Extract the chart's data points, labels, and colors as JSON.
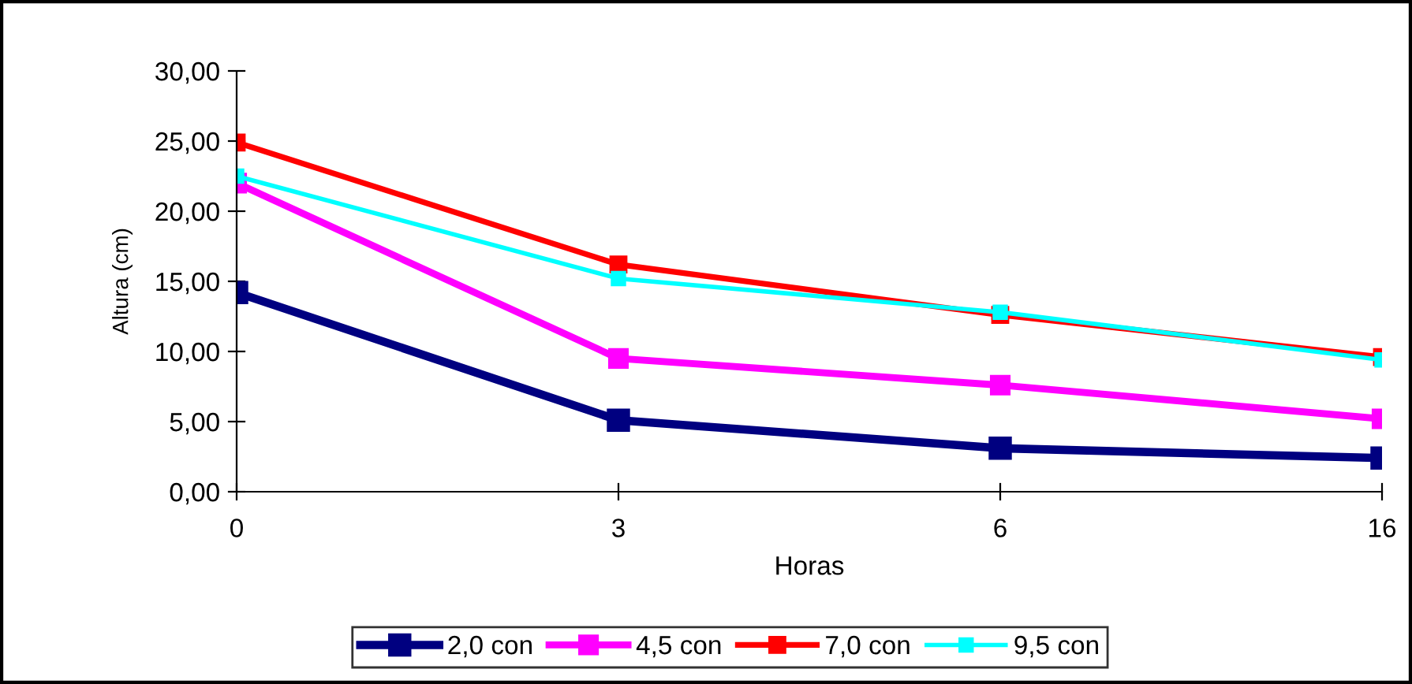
{
  "chart_data": {
    "type": "line",
    "xlabel": "Horas",
    "ylabel": "Altura (cm)",
    "categories": [
      "0",
      "3",
      "6",
      "16"
    ],
    "series": [
      {
        "name": "2,0 con",
        "color": "#000080",
        "values": [
          14.2,
          5.1,
          3.1,
          2.4
        ]
      },
      {
        "name": "4,5 con",
        "color": "#ff00ff",
        "values": [
          22.0,
          9.5,
          7.6,
          5.2
        ]
      },
      {
        "name": "7,0 con",
        "color": "#ff0000",
        "values": [
          24.9,
          16.2,
          12.6,
          9.6
        ]
      },
      {
        "name": "9,5 con",
        "color": "#00ffff",
        "values": [
          22.5,
          15.2,
          12.8,
          9.4
        ]
      }
    ],
    "ylim": [
      0,
      30
    ],
    "yticks": [
      {
        "value": 0,
        "label": "0,00"
      },
      {
        "value": 5,
        "label": "5,00"
      },
      {
        "value": 10,
        "label": "10,00"
      },
      {
        "value": 15,
        "label": "15,00"
      },
      {
        "value": 20,
        "label": "20,00"
      },
      {
        "value": 25,
        "label": "25,00"
      },
      {
        "value": 30,
        "label": "30,00"
      }
    ],
    "grid": false,
    "legend": "bottom",
    "marker": "square",
    "line_style": "solid"
  }
}
